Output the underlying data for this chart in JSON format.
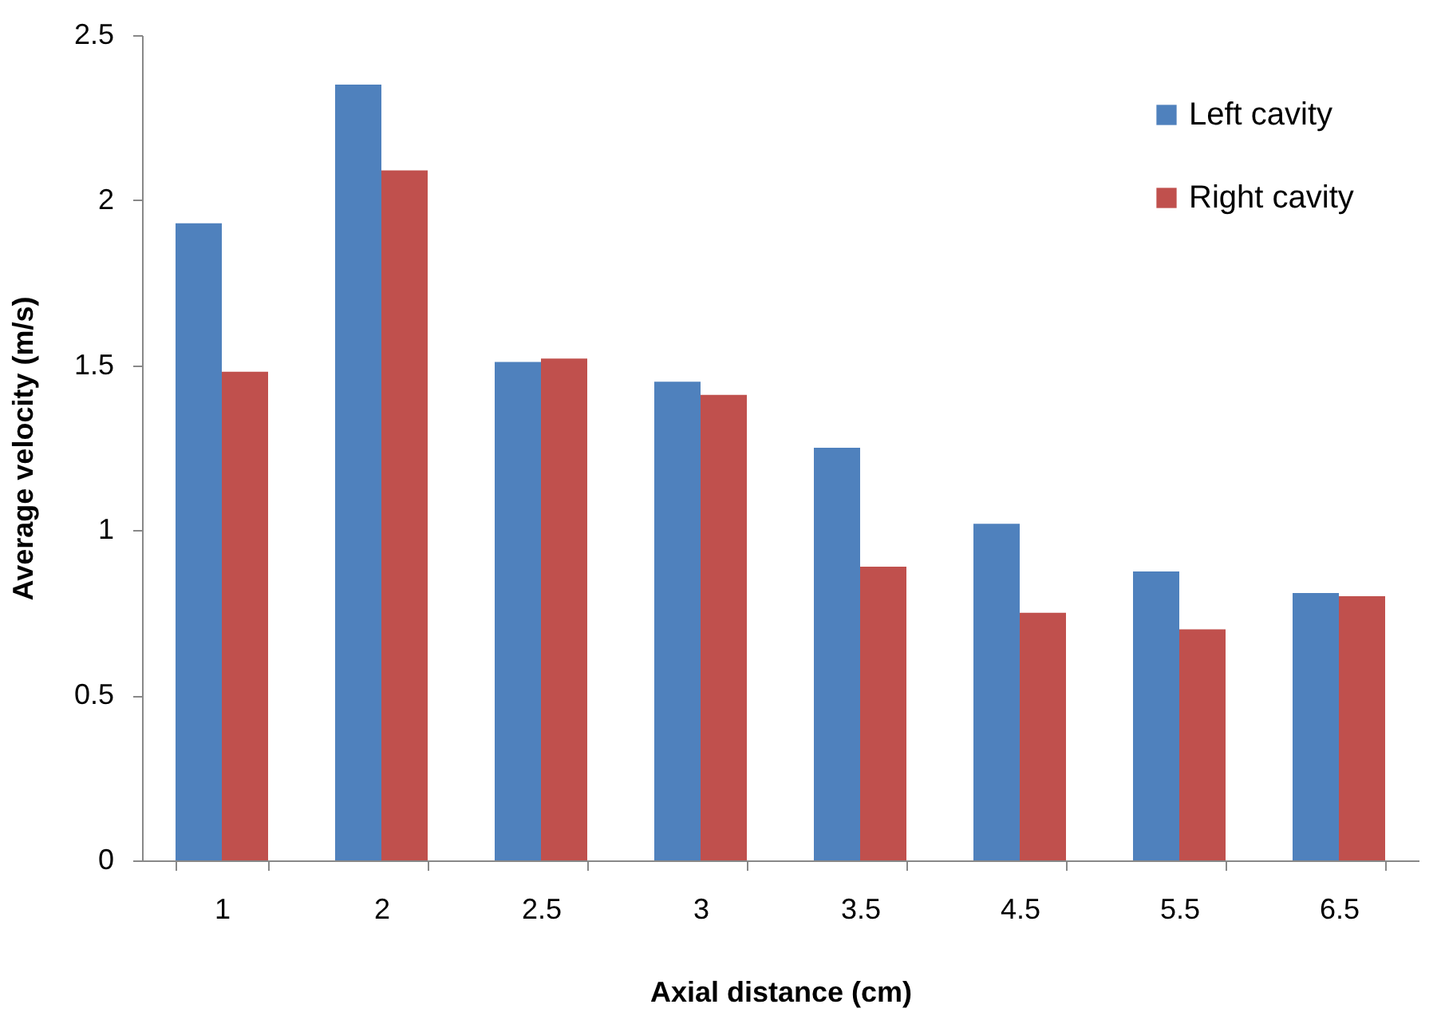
{
  "chart_data": {
    "type": "bar",
    "xlabel": "Axial distance (cm)",
    "ylabel": "Average velocity (m/s)",
    "categories": [
      "1",
      "2",
      "2.5",
      "3",
      "3.5",
      "4.5",
      "5.5",
      "6.5"
    ],
    "series": [
      {
        "name": "Left cavity",
        "color": "#4f81bd",
        "values": [
          1.93,
          2.35,
          1.51,
          1.45,
          1.25,
          1.02,
          0.875,
          0.81
        ]
      },
      {
        "name": "Right cavity",
        "color": "#c0504d",
        "values": [
          1.48,
          2.09,
          1.52,
          1.41,
          0.89,
          0.75,
          0.7,
          0.8
        ]
      }
    ],
    "ylim": [
      0,
      2.5
    ],
    "yticks": [
      0,
      0.5,
      1,
      1.5,
      2,
      2.5
    ],
    "grid": false,
    "legend": "top right"
  }
}
